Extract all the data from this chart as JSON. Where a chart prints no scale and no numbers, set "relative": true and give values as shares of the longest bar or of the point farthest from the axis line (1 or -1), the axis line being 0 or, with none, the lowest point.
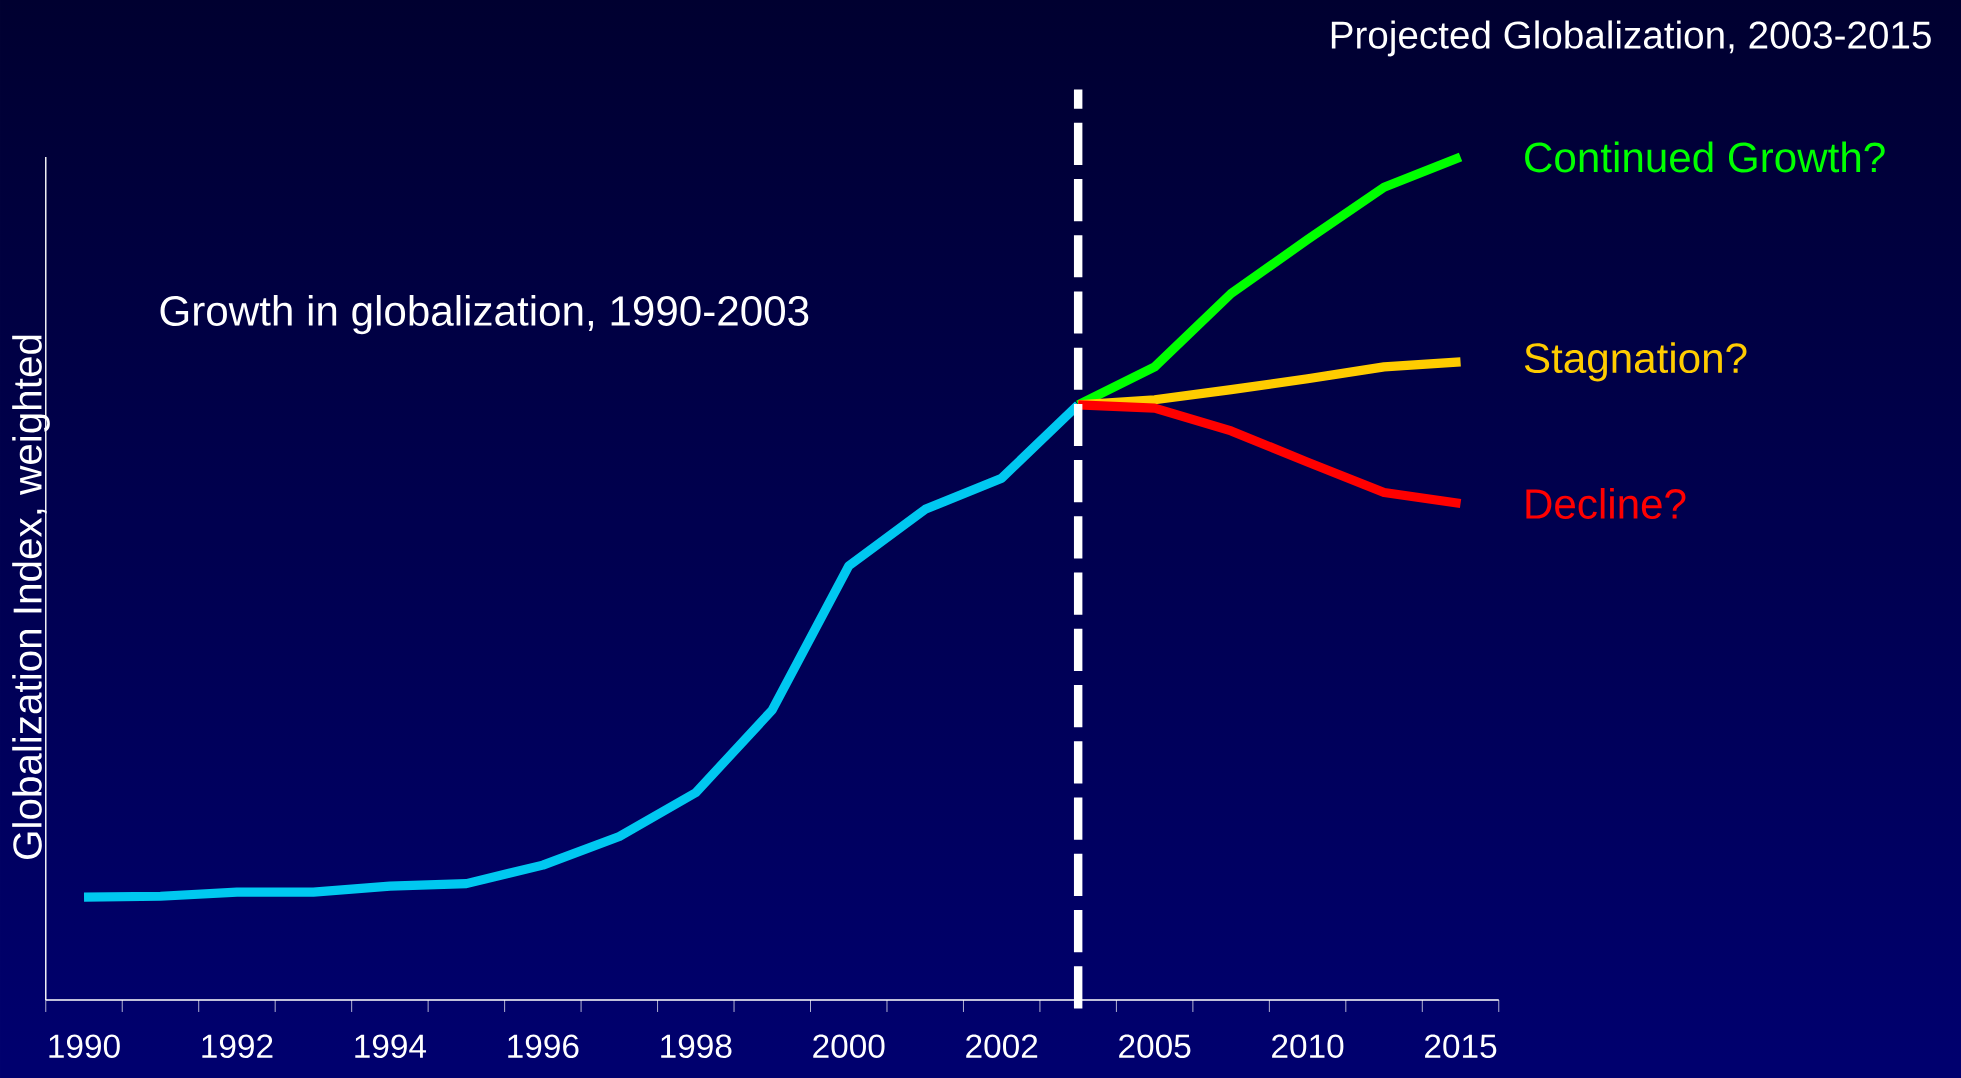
{
  "chart_data": {
    "type": "line",
    "title": "Projected Globalization, 2003-2015",
    "ylabel": "Globalization Index, weighted",
    "relative": true,
    "marker": "none",
    "line_style": "solid",
    "categories": [
      "1990",
      null,
      "1992",
      null,
      "1994",
      null,
      "1996",
      null,
      "1998",
      null,
      "2000",
      null,
      "2002",
      null,
      "2005",
      null,
      "2010",
      null,
      "2015"
    ],
    "series": [
      {
        "color": "#00c8f0",
        "values": [
          0.122,
          0.123,
          0.128,
          0.128,
          0.135,
          0.138,
          0.16,
          0.194,
          0.246,
          0.344,
          0.515,
          0.582,
          0.619,
          0.706,
          null,
          null,
          null,
          null,
          null
        ]
      },
      {
        "name": "Continued Growth?",
        "color": "#00ff00",
        "values": [
          null,
          null,
          null,
          null,
          null,
          null,
          null,
          null,
          null,
          null,
          null,
          null,
          null,
          0.706,
          0.751,
          0.838,
          0.902,
          0.964,
          1
        ]
      },
      {
        "name": "Stagnation?",
        "color": "#ffcc00",
        "values": [
          null,
          null,
          null,
          null,
          null,
          null,
          null,
          null,
          null,
          null,
          null,
          null,
          null,
          0.706,
          0.712,
          0.724,
          0.737,
          0.751,
          0.757
        ]
      },
      {
        "name": "Decline?",
        "color": "#ff0000",
        "values": [
          null,
          null,
          null,
          null,
          null,
          null,
          null,
          null,
          null,
          null,
          null,
          null,
          null,
          0.706,
          0.702,
          0.675,
          0.638,
          0.602,
          0.589
        ]
      }
    ],
    "annotations": [
      "Growth in globalization, 1990-2003"
    ]
  }
}
